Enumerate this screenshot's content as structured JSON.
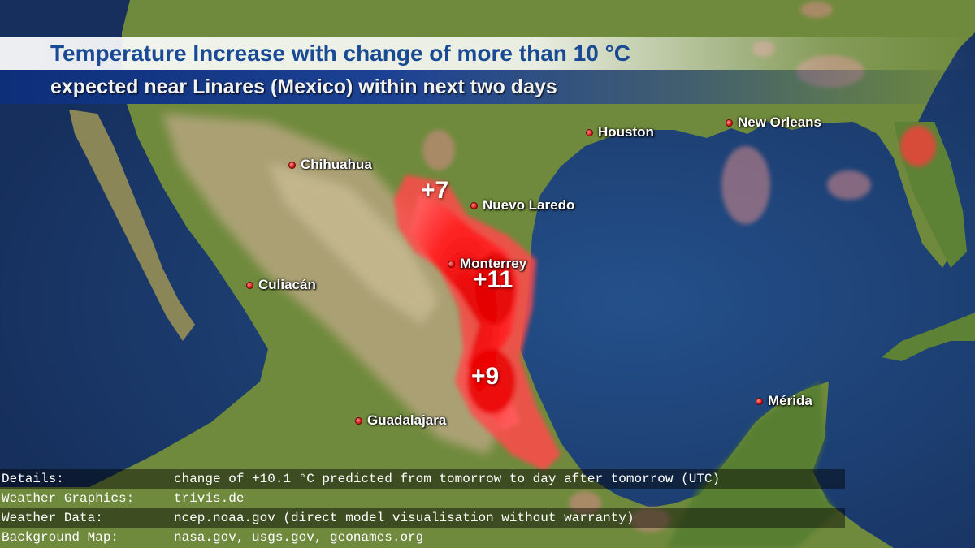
{
  "header": {
    "title": "Temperature Increase with change of more than 10 °C",
    "subtitle": "expected near Linares (Mexico) within next two days"
  },
  "cities": [
    {
      "name": "Chihuahua"
    },
    {
      "name": "Houston"
    },
    {
      "name": "New Orleans"
    },
    {
      "name": "Nuevo Laredo"
    },
    {
      "name": "Monterrey"
    },
    {
      "name": "Culiacán"
    },
    {
      "name": "Guadalajara"
    },
    {
      "name": "Mérida"
    }
  ],
  "anomalies": [
    {
      "label": "+7"
    },
    {
      "label": "+11"
    },
    {
      "label": "+9"
    }
  ],
  "footer": {
    "rows": [
      {
        "key": "Details:",
        "value": "change of +10.1 °C predicted from tomorrow to day after tomorrow (UTC)"
      },
      {
        "key": "Weather Graphics:",
        "value": "trivis.de"
      },
      {
        "key": "Weather Data:",
        "value": "ncep.noaa.gov (direct model visualisation without warranty)"
      },
      {
        "key": "Background Map:",
        "value": "nasa.gov, usgs.gov, geonames.org"
      }
    ]
  },
  "colors": {
    "ocean": "#1f4479",
    "land": "#6f8a3c",
    "highland": "#b9aa83",
    "heat": "#ff1a1a",
    "title": "#1a4a93"
  }
}
